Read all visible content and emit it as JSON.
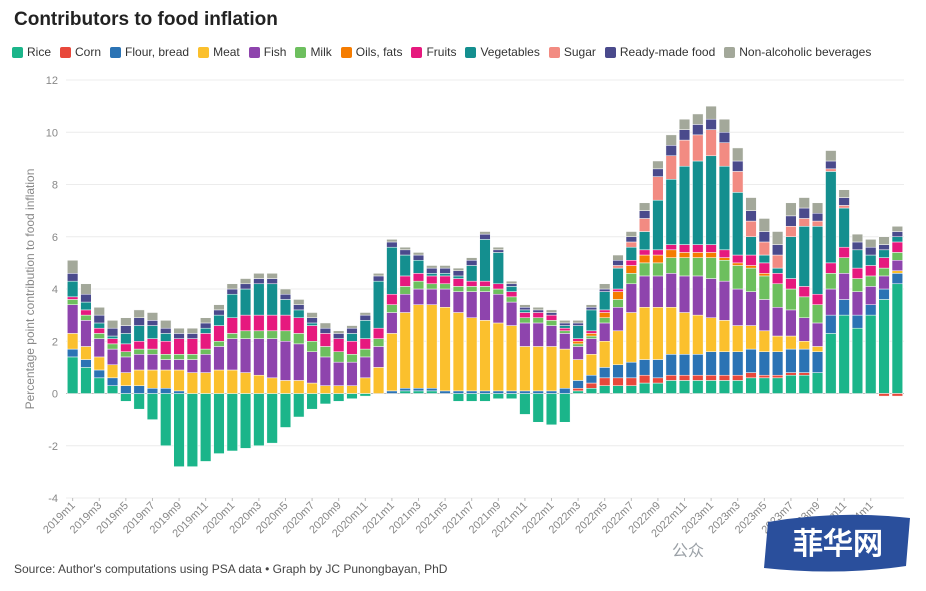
{
  "title": "Contributors to food inflation",
  "source": "Source: Author's computations using PSA data • Graph by JC Punongbayan, PhD",
  "watermark": "公众",
  "logo_text": "菲华网",
  "chart_data": {
    "type": "bar",
    "stacked": true,
    "ylabel": "Percentage point contribution to food inflation",
    "ylim": [
      -4,
      12
    ],
    "yticks": [
      -4,
      -2,
      0,
      2,
      4,
      6,
      8,
      10,
      12
    ],
    "grid": true,
    "legend_position": "top",
    "x_tick_labels": [
      "2019m1",
      "2019m3",
      "2019m5",
      "2019m7",
      "2019m9",
      "2019m11",
      "2020m1",
      "2020m3",
      "2020m5",
      "2020m7",
      "2020m9",
      "2020m11",
      "2021m1",
      "2021m3",
      "2021m5",
      "2021m7",
      "2021m9",
      "2021m11",
      "2022m1",
      "2022m3",
      "2022m5",
      "2022m7",
      "2022m9",
      "2022m11",
      "2023m1",
      "2023m3",
      "2023m5",
      "2023m7",
      "2023m9",
      "2023m11",
      "2024m1"
    ],
    "categories": [
      "2019m1",
      "2019m2",
      "2019m3",
      "2019m4",
      "2019m5",
      "2019m6",
      "2019m7",
      "2019m8",
      "2019m9",
      "2019m10",
      "2019m11",
      "2019m12",
      "2020m1",
      "2020m2",
      "2020m3",
      "2020m4",
      "2020m5",
      "2020m6",
      "2020m7",
      "2020m8",
      "2020m9",
      "2020m10",
      "2020m11",
      "2020m12",
      "2021m1",
      "2021m2",
      "2021m3",
      "2021m4",
      "2021m5",
      "2021m6",
      "2021m7",
      "2021m8",
      "2021m9",
      "2021m10",
      "2021m11",
      "2021m12",
      "2022m1",
      "2022m2",
      "2022m3",
      "2022m4",
      "2022m5",
      "2022m6",
      "2022m7",
      "2022m8",
      "2022m9",
      "2022m10",
      "2022m11",
      "2022m12",
      "2023m1",
      "2023m2",
      "2023m3",
      "2023m4",
      "2023m5",
      "2023m6",
      "2023m7",
      "2023m8",
      "2023m9",
      "2023m10",
      "2023m11",
      "2023m12",
      "2024m1",
      "2024m2",
      "2024m3"
    ],
    "series": [
      {
        "name": "Rice",
        "color": "#1bb58a",
        "values": [
          1.4,
          1.0,
          0.6,
          0.3,
          -0.3,
          -0.6,
          -1.0,
          -2.0,
          -2.8,
          -2.8,
          -2.6,
          -2.3,
          -2.2,
          -2.1,
          -2.0,
          -1.9,
          -1.3,
          -0.9,
          -0.6,
          -0.4,
          -0.3,
          -0.2,
          -0.1,
          0.0,
          0.0,
          0.1,
          0.1,
          0.1,
          0.0,
          -0.3,
          -0.3,
          -0.3,
          -0.2,
          -0.2,
          -0.8,
          -1.1,
          -1.2,
          -1.1,
          0.1,
          0.2,
          0.3,
          0.3,
          0.3,
          0.4,
          0.4,
          0.5,
          0.5,
          0.5,
          0.5,
          0.5,
          0.5,
          0.6,
          0.6,
          0.6,
          0.7,
          0.7,
          0.8,
          2.3,
          3.0,
          2.5,
          3.0,
          3.6,
          4.2
        ]
      },
      {
        "name": "Corn",
        "color": "#e8483b",
        "values": [
          0.0,
          0.0,
          0.0,
          0.0,
          0.0,
          0.0,
          0.0,
          0.0,
          0.0,
          0.0,
          0.0,
          0.0,
          0.0,
          0.0,
          0.0,
          0.0,
          0.0,
          0.0,
          0.0,
          0.0,
          0.0,
          0.0,
          0.0,
          0.0,
          0.0,
          0.0,
          0.0,
          0.0,
          0.0,
          0.0,
          0.0,
          0.0,
          0.0,
          0.0,
          0.0,
          0.0,
          0.0,
          0.0,
          0.1,
          0.2,
          0.3,
          0.3,
          0.3,
          0.3,
          0.2,
          0.2,
          0.2,
          0.2,
          0.2,
          0.2,
          0.2,
          0.2,
          0.1,
          0.1,
          0.1,
          0.1,
          0.0,
          0.0,
          0.0,
          0.0,
          0.0,
          -0.1,
          -0.1
        ]
      },
      {
        "name": "Flour, bread",
        "color": "#2b73b4",
        "values": [
          0.3,
          0.3,
          0.3,
          0.3,
          0.3,
          0.3,
          0.2,
          0.2,
          0.1,
          0.0,
          0.0,
          0.0,
          0.0,
          0.0,
          0.0,
          0.0,
          0.0,
          0.0,
          0.0,
          0.0,
          0.0,
          0.0,
          0.0,
          0.0,
          0.1,
          0.1,
          0.1,
          0.1,
          0.1,
          0.1,
          0.1,
          0.1,
          0.1,
          0.1,
          0.1,
          0.1,
          0.1,
          0.2,
          0.3,
          0.3,
          0.4,
          0.5,
          0.6,
          0.6,
          0.7,
          0.8,
          0.8,
          0.8,
          0.9,
          0.9,
          0.9,
          0.9,
          0.9,
          0.9,
          0.9,
          0.9,
          0.8,
          0.7,
          0.6,
          0.5,
          0.4,
          0.4,
          0.4
        ]
      },
      {
        "name": "Meat",
        "color": "#fbc02d",
        "values": [
          0.6,
          0.5,
          0.5,
          0.5,
          0.5,
          0.6,
          0.7,
          0.7,
          0.8,
          0.8,
          0.8,
          0.9,
          0.9,
          0.8,
          0.7,
          0.6,
          0.5,
          0.5,
          0.4,
          0.3,
          0.3,
          0.3,
          0.6,
          1.0,
          2.2,
          2.9,
          3.2,
          3.2,
          3.2,
          3.0,
          2.8,
          2.7,
          2.6,
          2.5,
          1.7,
          1.7,
          1.7,
          1.5,
          0.8,
          0.8,
          1.0,
          1.3,
          1.9,
          2.0,
          2.0,
          1.8,
          1.6,
          1.5,
          1.3,
          1.2,
          1.0,
          0.9,
          0.8,
          0.6,
          0.5,
          0.3,
          0.2,
          0.0,
          0.0,
          0.0,
          0.0,
          0.0,
          0.1
        ]
      },
      {
        "name": "Fish",
        "color": "#8e44ad",
        "values": [
          1.1,
          1.0,
          0.7,
          0.6,
          0.6,
          0.6,
          0.6,
          0.4,
          0.4,
          0.5,
          0.7,
          0.9,
          1.2,
          1.3,
          1.4,
          1.5,
          1.5,
          1.4,
          1.2,
          1.1,
          0.9,
          0.9,
          0.8,
          0.8,
          0.8,
          0.7,
          0.6,
          0.6,
          0.7,
          0.8,
          1.0,
          1.1,
          1.1,
          0.9,
          0.9,
          0.9,
          0.8,
          0.6,
          0.5,
          0.6,
          0.7,
          0.9,
          1.1,
          1.2,
          1.2,
          1.3,
          1.4,
          1.5,
          1.5,
          1.5,
          1.4,
          1.3,
          1.2,
          1.1,
          1.0,
          0.9,
          0.9,
          1.0,
          1.0,
          0.9,
          0.7,
          0.5,
          0.4
        ]
      },
      {
        "name": "Milk",
        "color": "#6dbf5e",
        "values": [
          0.2,
          0.2,
          0.2,
          0.2,
          0.2,
          0.2,
          0.2,
          0.2,
          0.2,
          0.2,
          0.2,
          0.2,
          0.2,
          0.3,
          0.3,
          0.3,
          0.4,
          0.4,
          0.4,
          0.4,
          0.4,
          0.3,
          0.3,
          0.3,
          0.3,
          0.3,
          0.3,
          0.2,
          0.2,
          0.2,
          0.2,
          0.2,
          0.2,
          0.2,
          0.2,
          0.2,
          0.2,
          0.1,
          0.1,
          0.1,
          0.2,
          0.3,
          0.4,
          0.5,
          0.5,
          0.6,
          0.7,
          0.7,
          0.8,
          0.8,
          0.9,
          0.9,
          0.9,
          0.9,
          0.8,
          0.8,
          0.7,
          0.6,
          0.6,
          0.5,
          0.4,
          0.3,
          0.3
        ]
      },
      {
        "name": "Oils, fats",
        "color": "#f57c00",
        "values": [
          0.0,
          0.0,
          0.0,
          0.0,
          0.0,
          0.0,
          0.0,
          0.0,
          0.0,
          0.0,
          0.0,
          0.0,
          0.0,
          0.0,
          0.0,
          0.0,
          0.0,
          0.0,
          0.0,
          0.0,
          0.0,
          0.0,
          0.0,
          0.0,
          0.0,
          0.0,
          0.0,
          0.0,
          0.0,
          0.0,
          0.0,
          0.0,
          0.0,
          0.0,
          0.0,
          0.0,
          0.0,
          0.0,
          0.1,
          0.1,
          0.2,
          0.3,
          0.3,
          0.3,
          0.3,
          0.3,
          0.2,
          0.2,
          0.2,
          0.1,
          0.1,
          0.1,
          0.1,
          0.0,
          0.0,
          0.0,
          0.0,
          0.0,
          0.0,
          0.0,
          0.0,
          0.0,
          0.0
        ]
      },
      {
        "name": "Fruits",
        "color": "#e6197e",
        "values": [
          0.1,
          0.2,
          0.2,
          0.2,
          0.3,
          0.3,
          0.4,
          0.5,
          0.6,
          0.6,
          0.6,
          0.6,
          0.6,
          0.6,
          0.6,
          0.6,
          0.6,
          0.6,
          0.6,
          0.5,
          0.5,
          0.5,
          0.4,
          0.4,
          0.4,
          0.4,
          0.3,
          0.3,
          0.3,
          0.3,
          0.2,
          0.2,
          0.2,
          0.2,
          0.2,
          0.2,
          0.2,
          0.1,
          0.1,
          0.1,
          0.1,
          0.1,
          0.2,
          0.2,
          0.2,
          0.2,
          0.3,
          0.3,
          0.3,
          0.3,
          0.3,
          0.4,
          0.4,
          0.4,
          0.4,
          0.4,
          0.4,
          0.4,
          0.4,
          0.4,
          0.4,
          0.4,
          0.4
        ]
      },
      {
        "name": "Vegetables",
        "color": "#148f8f",
        "values": [
          0.6,
          0.3,
          0.2,
          0.1,
          0.4,
          0.6,
          0.5,
          0.3,
          0.0,
          0.0,
          0.2,
          0.4,
          0.9,
          1.0,
          1.2,
          1.2,
          0.6,
          0.3,
          0.1,
          0.0,
          0.0,
          0.3,
          0.7,
          1.8,
          1.8,
          0.8,
          0.5,
          0.1,
          0.1,
          0.1,
          0.6,
          1.6,
          1.2,
          0.2,
          0.1,
          0.0,
          0.0,
          0.1,
          0.5,
          0.8,
          0.7,
          0.8,
          0.5,
          0.7,
          1.9,
          2.5,
          3.0,
          3.2,
          3.4,
          3.2,
          2.4,
          0.7,
          0.3,
          0.2,
          1.6,
          2.3,
          2.6,
          3.5,
          1.5,
          0.7,
          0.4,
          0.3,
          0.2
        ]
      },
      {
        "name": "Sugar",
        "color": "#f28b82",
        "values": [
          0.0,
          0.0,
          0.0,
          0.0,
          0.0,
          0.0,
          0.0,
          0.0,
          0.0,
          0.0,
          0.0,
          0.0,
          0.0,
          0.0,
          0.0,
          0.0,
          0.0,
          0.0,
          0.0,
          0.0,
          0.0,
          0.0,
          0.0,
          0.0,
          0.0,
          0.0,
          0.0,
          0.0,
          0.0,
          0.0,
          0.0,
          0.0,
          0.0,
          0.0,
          0.0,
          0.0,
          0.0,
          0.0,
          0.0,
          0.0,
          0.0,
          0.1,
          0.2,
          0.5,
          0.9,
          0.9,
          1.0,
          1.0,
          1.0,
          0.9,
          0.8,
          0.6,
          0.5,
          0.5,
          0.4,
          0.3,
          0.2,
          0.1,
          0.1,
          0.0,
          0.0,
          0.0,
          0.0
        ]
      },
      {
        "name": "Ready-made food",
        "color": "#4a4a8c",
        "values": [
          0.3,
          0.3,
          0.3,
          0.3,
          0.3,
          0.3,
          0.2,
          0.2,
          0.2,
          0.2,
          0.2,
          0.2,
          0.2,
          0.2,
          0.2,
          0.2,
          0.2,
          0.2,
          0.2,
          0.2,
          0.2,
          0.2,
          0.2,
          0.2,
          0.2,
          0.2,
          0.2,
          0.2,
          0.2,
          0.2,
          0.2,
          0.2,
          0.1,
          0.1,
          0.1,
          0.1,
          0.1,
          0.1,
          0.1,
          0.1,
          0.1,
          0.2,
          0.2,
          0.3,
          0.3,
          0.4,
          0.4,
          0.4,
          0.4,
          0.4,
          0.4,
          0.4,
          0.4,
          0.4,
          0.4,
          0.4,
          0.3,
          0.3,
          0.3,
          0.3,
          0.3,
          0.2,
          0.2
        ]
      },
      {
        "name": "Non-alcoholic beverages",
        "color": "#a3a89a",
        "values": [
          0.5,
          0.4,
          0.3,
          0.3,
          0.3,
          0.3,
          0.3,
          0.3,
          0.2,
          0.2,
          0.2,
          0.2,
          0.2,
          0.2,
          0.2,
          0.2,
          0.2,
          0.2,
          0.2,
          0.2,
          0.1,
          0.1,
          0.1,
          0.1,
          0.1,
          0.1,
          0.1,
          0.1,
          0.1,
          0.1,
          0.1,
          0.1,
          0.1,
          0.1,
          0.1,
          0.1,
          0.1,
          0.1,
          0.1,
          0.1,
          0.2,
          0.2,
          0.2,
          0.3,
          0.3,
          0.4,
          0.4,
          0.4,
          0.5,
          0.5,
          0.5,
          0.5,
          0.5,
          0.5,
          0.5,
          0.4,
          0.4,
          0.4,
          0.3,
          0.3,
          0.3,
          0.3,
          0.2
        ]
      }
    ]
  }
}
